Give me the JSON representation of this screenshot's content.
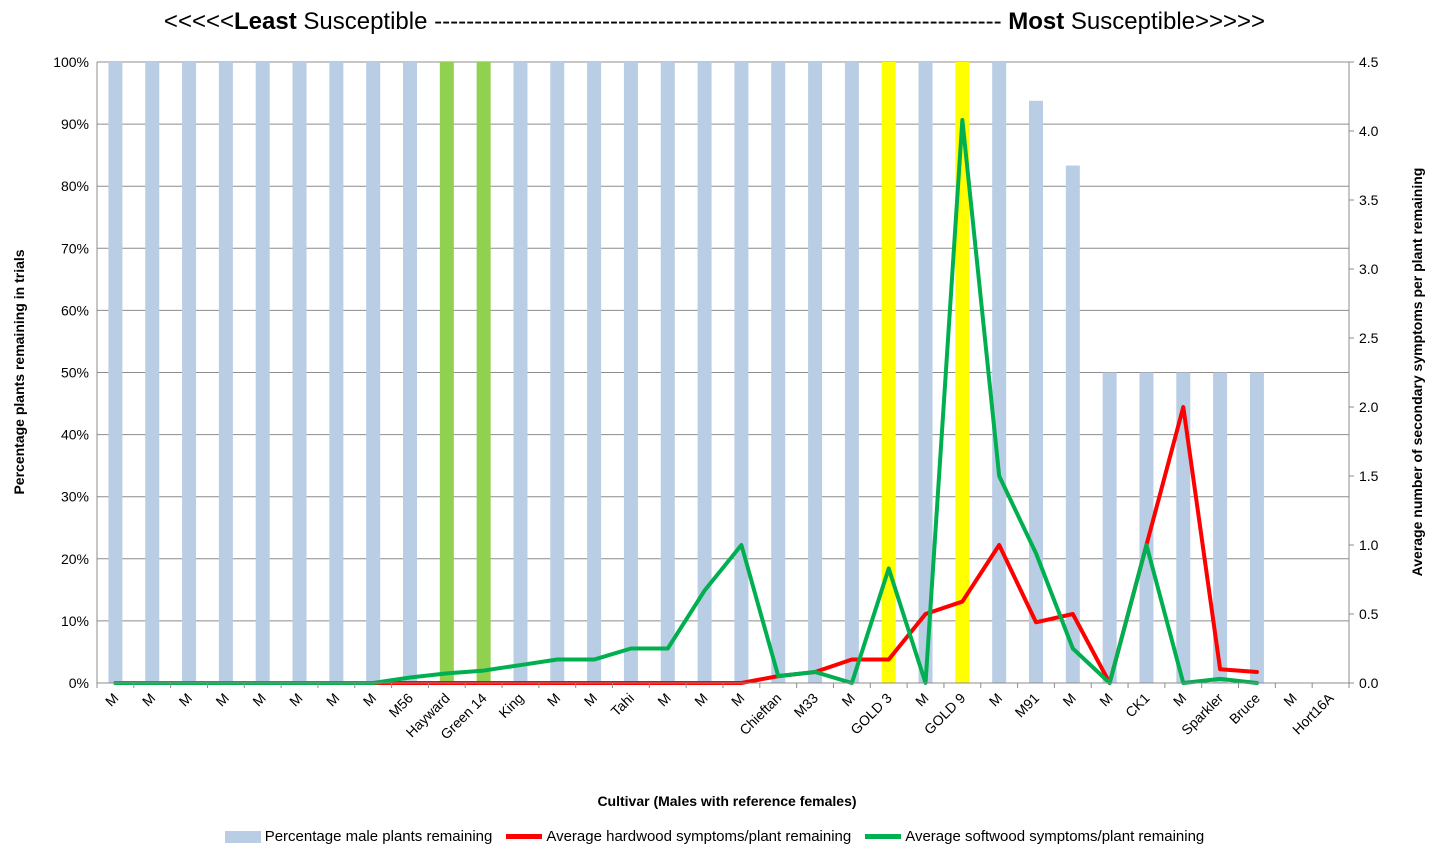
{
  "chart_data": {
    "type": "bar",
    "title": {
      "prefix": "<<<<<",
      "least_bold": "Least",
      "least_rest": " Susceptible ",
      "dashes": "-----------------------------------------------------------------------",
      "most_bold": "Most",
      "most_rest": " Susceptible>>>>>"
    },
    "xlabel": "Cultivar (Males with reference females)",
    "ylabel_left": "Percentage plants remaining  in trials",
    "ylabel_right": "Average number of secondary symptoms per plant remaining",
    "ylim_left": [
      0,
      100
    ],
    "ylim_right": [
      0,
      4.5
    ],
    "yticks_left": [
      "0%",
      "10%",
      "20%",
      "30%",
      "40%",
      "50%",
      "60%",
      "70%",
      "80%",
      "90%",
      "100%"
    ],
    "yticks_right": [
      "0.0",
      "0.5",
      "1.0",
      "1.5",
      "2.0",
      "2.5",
      "3.0",
      "3.5",
      "4.0",
      "4.5"
    ],
    "grid": true,
    "legend_position": "bottom",
    "categories": [
      "M",
      "M",
      "M",
      "M",
      "M",
      "M",
      "M",
      "M",
      "M56",
      "Hayward",
      "Green 14",
      "King",
      "M",
      "M",
      "Tahi",
      "M",
      "M",
      "M",
      "Chieftan",
      "M33",
      "M",
      "GOLD 3",
      "M",
      "GOLD 9",
      "M",
      "M91",
      "M",
      "M",
      "CK1",
      "M",
      "Sparkler",
      "Bruce",
      "M",
      "Hort16A"
    ],
    "bar_colors": [
      "#b9cde5",
      "#b9cde5",
      "#b9cde5",
      "#b9cde5",
      "#b9cde5",
      "#b9cde5",
      "#b9cde5",
      "#b9cde5",
      "#b9cde5",
      "#92d050",
      "#92d050",
      "#b9cde5",
      "#b9cde5",
      "#b9cde5",
      "#b9cde5",
      "#b9cde5",
      "#b9cde5",
      "#b9cde5",
      "#b9cde5",
      "#b9cde5",
      "#b9cde5",
      "#ffff00",
      "#b9cde5",
      "#ffff00",
      "#b9cde5",
      "#b9cde5",
      "#b9cde5",
      "#b9cde5",
      "#b9cde5",
      "#b9cde5",
      "#b9cde5",
      "#b9cde5",
      "#b9cde5",
      "#b9cde5"
    ],
    "series": [
      {
        "name": "Percentage male plants remaining",
        "type": "bar",
        "axis": "left",
        "color": "#b9cde5",
        "values": [
          100,
          100,
          100,
          100,
          100,
          100,
          100,
          100,
          100,
          100,
          100,
          100,
          100,
          100,
          100,
          100,
          100,
          100,
          100,
          100,
          100,
          100,
          100,
          100,
          100,
          93.75,
          83.33,
          50,
          50,
          50,
          50,
          50,
          0,
          0
        ]
      },
      {
        "name": "Average hardwood symptoms/plant remaining",
        "type": "line",
        "axis": "right",
        "color": "#ff0000",
        "values": [
          0,
          0,
          0,
          0,
          0,
          0,
          0,
          0,
          0,
          0,
          0,
          0,
          0,
          0,
          0,
          0,
          0,
          0,
          0.05,
          0.08,
          0.17,
          0.17,
          0.5,
          0.59,
          1.0,
          0.44,
          0.5,
          0.0,
          1.0,
          2.0,
          0.1,
          0.08,
          null,
          null
        ]
      },
      {
        "name": "Average softwood symptoms/plant remaining",
        "type": "line",
        "axis": "right",
        "color": "#00b050",
        "values": [
          0,
          0,
          0,
          0,
          0,
          0,
          0,
          0,
          0.04,
          0.07,
          0.09,
          0.13,
          0.17,
          0.17,
          0.25,
          0.25,
          0.67,
          1.0,
          0.05,
          0.08,
          0.0,
          0.83,
          0.0,
          4.08,
          1.5,
          0.94,
          0.25,
          0.0,
          1.0,
          0.0,
          0.03,
          0.0,
          null,
          null
        ]
      }
    ]
  }
}
